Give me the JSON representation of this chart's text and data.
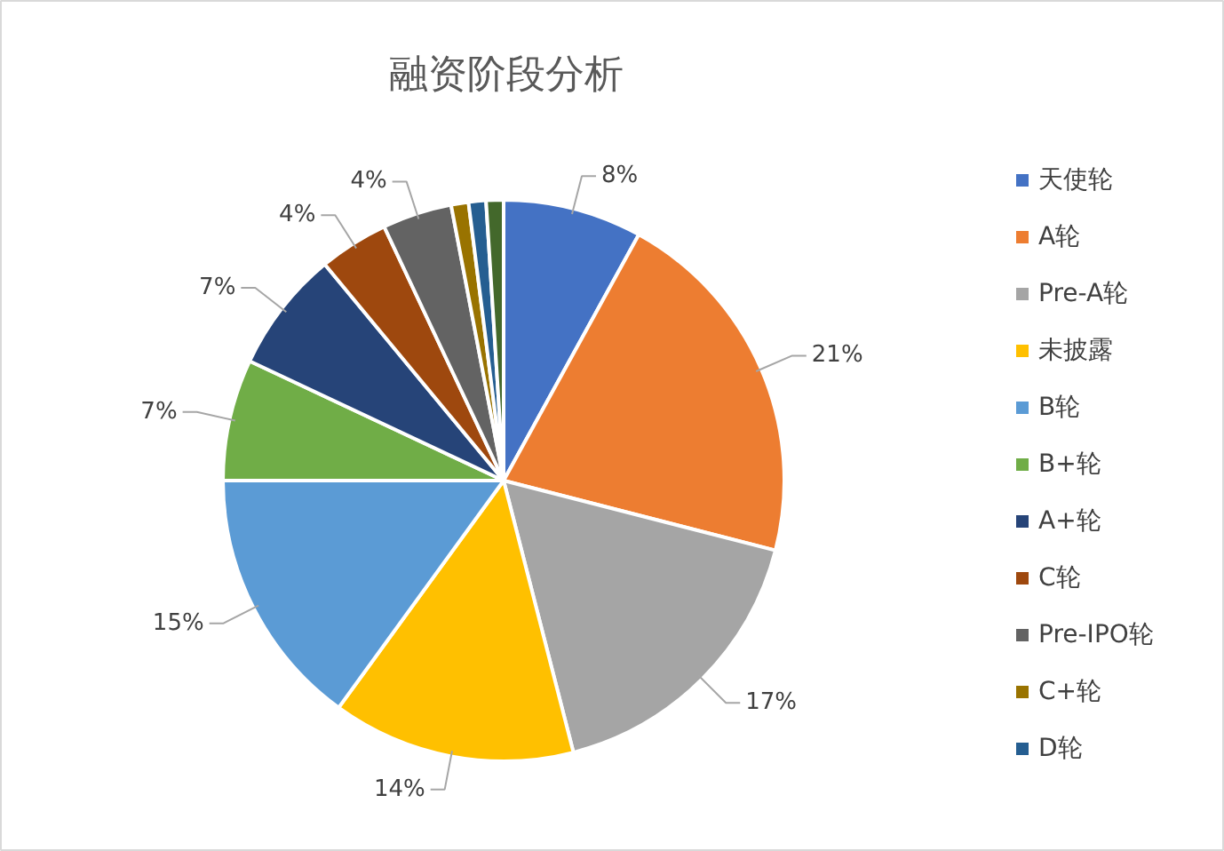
{
  "chart_data": {
    "type": "pie",
    "title": "融资阶段分析",
    "categories": [
      "天使轮",
      "A轮",
      "Pre-A轮",
      "未披露",
      "B轮",
      "B+轮",
      "A+轮",
      "C轮",
      "Pre-IPO轮",
      "C+轮",
      "D轮",
      null
    ],
    "values": [
      8,
      21,
      17,
      14,
      15,
      7,
      7,
      4,
      4,
      1,
      1,
      1
    ],
    "colors": [
      "#4472c4",
      "#ed7d31",
      "#a5a5a5",
      "#ffc000",
      "#5b9bd5",
      "#70ad47",
      "#264478",
      "#9e480e",
      "#636363",
      "#997300",
      "#255e91",
      "#43682b"
    ],
    "value_labels": [
      "8%",
      "21%",
      "17%",
      "14%",
      "15%",
      "7%",
      "7%",
      "4%",
      "4%",
      null,
      null,
      null
    ],
    "legend": "right"
  }
}
